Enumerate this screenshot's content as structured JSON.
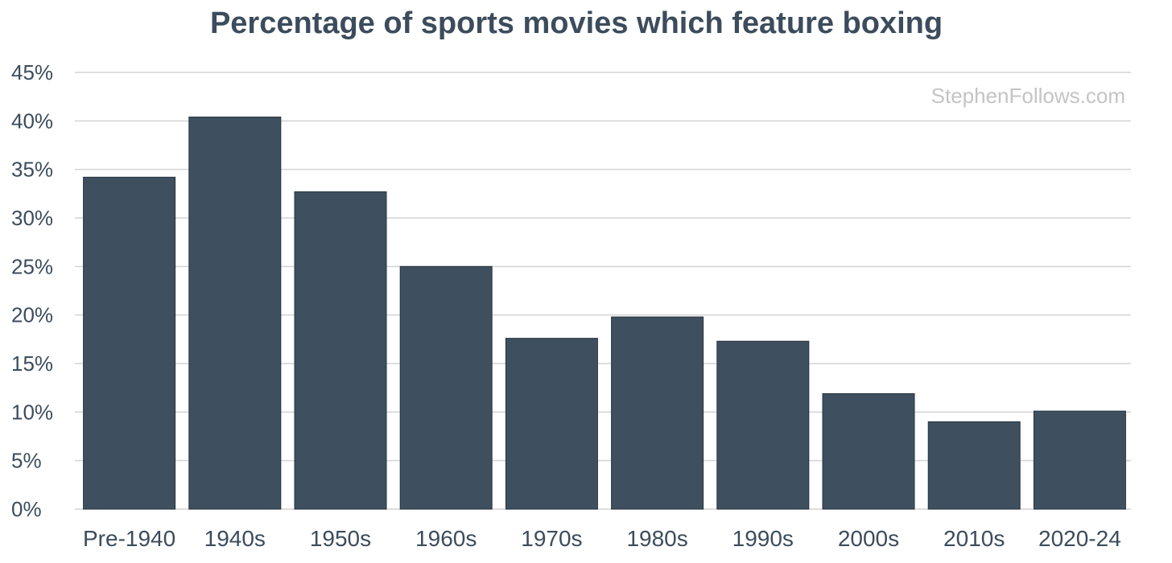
{
  "chart_data": {
    "type": "bar",
    "title": "Percentage of sports movies which feature boxing",
    "categories": [
      "Pre-1940",
      "1940s",
      "1950s",
      "1960s",
      "1970s",
      "1980s",
      "1990s",
      "2000s",
      "2010s",
      "2020-24"
    ],
    "values": [
      34.2,
      40.4,
      32.7,
      25.0,
      17.6,
      19.8,
      17.3,
      11.9,
      9.0,
      10.1
    ],
    "value_unit": "%",
    "ylim": [
      0,
      45
    ],
    "yticks": [
      0,
      5,
      10,
      15,
      20,
      25,
      30,
      35,
      40,
      45
    ],
    "ytick_labels": [
      "0%",
      "5%",
      "10%",
      "15%",
      "20%",
      "25%",
      "30%",
      "35%",
      "40%",
      "45%"
    ],
    "xlabel": "",
    "ylabel": "",
    "grid": true,
    "legend": "none",
    "bar_color": "#3e5060",
    "grid_color": "#d3d3d3",
    "watermark": "StephenFollows.com"
  }
}
